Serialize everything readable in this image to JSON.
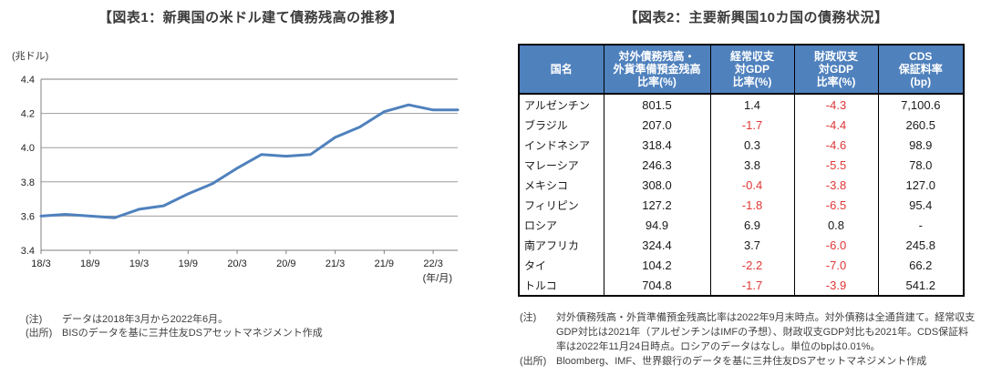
{
  "theme": {
    "header_bg": "#4f81bd",
    "negative_value_color": "#e03636",
    "line_color": "#4f81bd",
    "grid_color": "#9d9d9d",
    "axis_color": "#7f7f7f",
    "tick_text_color": "#222222",
    "title_color": "#3b3b3b",
    "note_color": "#404040"
  },
  "left_panel": {
    "title": "【図表1：新興国の米ドル建て債務残高の推移】",
    "y_axis_unit": "(兆ドル)",
    "x_axis_unit": "(年/月)",
    "note_label": "(注)",
    "note_text": "データは2018年3月から2022年6月。",
    "source_label": "(出所)",
    "source_text": "BISのデータを基に三井住友DSアセットマネジメント作成"
  },
  "right_panel": {
    "title": "【図表2：主要新興国10カ国の債務状況】",
    "note_label": "(注)",
    "note_text": "対外債務残高・外貨準備預金残高比率は2022年9月末時点。対外債務は全通貨建て。経常収支GDP対比は2021年（アルゼンチンはIMFの予想）、財政収支GDP対比も2021年。CDS保証料率は2022年11月24日時点。ロシアのデータはなし。単位のbpは0.01%。",
    "source_label": "(出所)",
    "source_text": "Bloomberg、IMF、世界銀行のデータを基に三井住友DSアセットマネジメント作成"
  },
  "chart_data": [
    {
      "type": "line",
      "title": "【図表1：新興国の米ドル建て債務残高の推移】",
      "ylabel": "(兆ドル)",
      "xlabel": "(年/月)",
      "ylim": [
        3.4,
        4.4
      ],
      "y_ticks": [
        "3.4",
        "3.6",
        "3.8",
        "4.0",
        "4.2",
        "4.4"
      ],
      "grid": true,
      "x": [
        "18/3",
        "18/6",
        "18/9",
        "18/12",
        "19/3",
        "19/6",
        "19/9",
        "19/12",
        "20/3",
        "20/6",
        "20/9",
        "20/12",
        "21/3",
        "21/6",
        "21/9",
        "21/12",
        "22/3",
        "22/6"
      ],
      "values": [
        3.6,
        3.61,
        3.6,
        3.59,
        3.64,
        3.66,
        3.73,
        3.79,
        3.88,
        3.96,
        3.95,
        3.96,
        4.06,
        4.12,
        4.21,
        4.25,
        4.22,
        4.22
      ],
      "x_tick_labels": [
        "18/3",
        "18/9",
        "19/3",
        "19/9",
        "20/3",
        "20/9",
        "21/3",
        "21/9",
        "22/3"
      ]
    },
    {
      "type": "table",
      "title": "【図表2：主要新興国10カ国の債務状況】",
      "columns": [
        [
          "国名"
        ],
        [
          "対外債務残高・",
          "外貨準備預金残高",
          "比率(%)"
        ],
        [
          "経常収支",
          "対GDP",
          "比率(%)"
        ],
        [
          "財政収支",
          "対GDP",
          "比率(%)"
        ],
        [
          "CDS",
          "保証料率",
          "(bp)"
        ]
      ],
      "rows": [
        [
          "アルゼンチン",
          "801.5",
          "1.4",
          "-4.3",
          "7,100.6"
        ],
        [
          "ブラジル",
          "207.0",
          "-1.7",
          "-4.4",
          "260.5"
        ],
        [
          "インドネシア",
          "318.4",
          "0.3",
          "-4.6",
          "98.9"
        ],
        [
          "マレーシア",
          "246.3",
          "3.8",
          "-5.5",
          "78.0"
        ],
        [
          "メキシコ",
          "308.0",
          "-0.4",
          "-3.8",
          "127.0"
        ],
        [
          "フィリピン",
          "127.2",
          "-1.8",
          "-6.5",
          "95.4"
        ],
        [
          "ロシア",
          "94.9",
          "6.9",
          "0.8",
          "-"
        ],
        [
          "南アフリカ",
          "324.4",
          "3.7",
          "-6.0",
          "245.8"
        ],
        [
          "タイ",
          "104.2",
          "-2.2",
          "-7.0",
          "66.2"
        ],
        [
          "トルコ",
          "704.8",
          "-1.7",
          "-3.9",
          "541.2"
        ]
      ]
    }
  ]
}
